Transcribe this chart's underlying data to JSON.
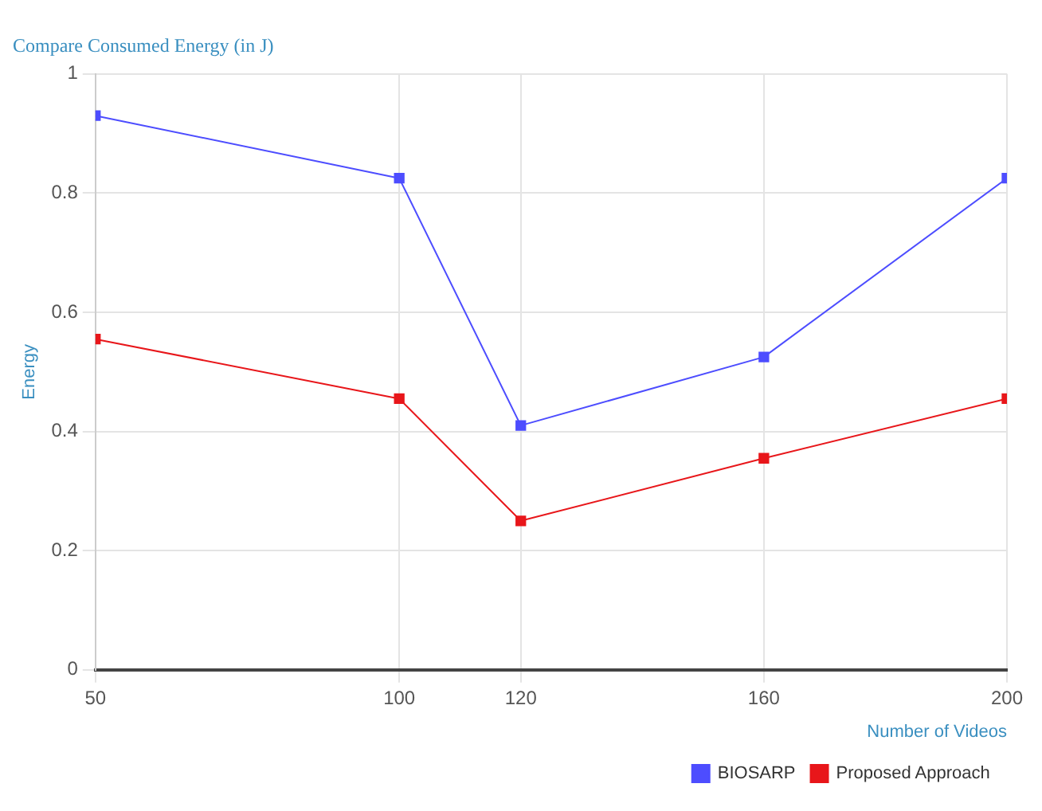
{
  "chart_data": {
    "type": "line",
    "title": "Compare Consumed Energy (in J)",
    "xlabel": "Number of Videos",
    "ylabel": "Energy",
    "x": [
      50,
      100,
      120,
      160,
      200
    ],
    "series": [
      {
        "name": "BIOSARP",
        "color": "#4d4dff",
        "values": [
          0.93,
          0.825,
          0.41,
          0.525,
          0.825
        ]
      },
      {
        "name": "Proposed Approach",
        "color": "#e8161a",
        "values": [
          0.555,
          0.455,
          0.25,
          0.355,
          0.455
        ]
      }
    ],
    "xlim": [
      50,
      200
    ],
    "xticks": [
      50,
      100,
      120,
      160,
      200
    ],
    "ylim": [
      0,
      1
    ],
    "yticks": [
      0,
      0.2,
      0.4,
      0.6,
      0.8,
      1
    ],
    "grid": true,
    "legend": "bottom right",
    "marker": "square",
    "line_style": "solid"
  }
}
